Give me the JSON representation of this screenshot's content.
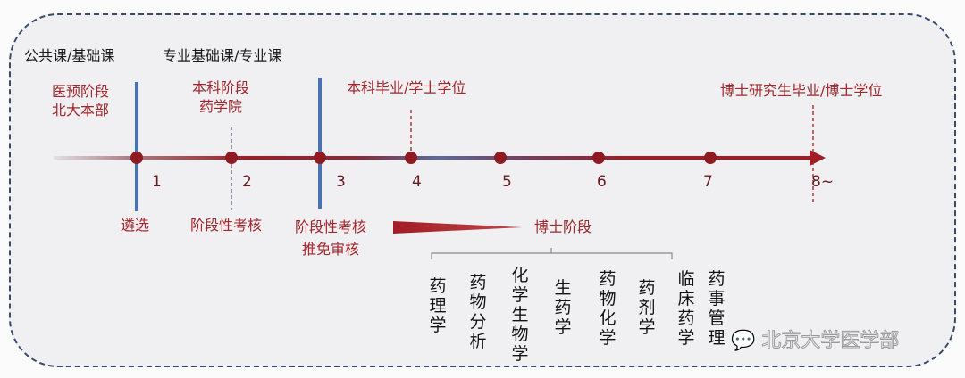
{
  "colors": {
    "timeline_red": "#9b1b22",
    "divider_blue": "#4a72b0",
    "label_red": "#a3262c",
    "frame": "#3b4a6b"
  },
  "top_labels": {
    "left": "公共课/基础课",
    "right": "专业基础课/专业课"
  },
  "stages": {
    "premed": [
      "医预阶段",
      "北大本部"
    ],
    "undergrad": [
      "本科阶段",
      "药学院"
    ],
    "bachelor": "本科毕业/学士学位",
    "phd_grad": "博士研究生毕业/博士学位"
  },
  "years": [
    "1",
    "2",
    "3",
    "4",
    "5",
    "6",
    "7",
    "8~"
  ],
  "checkpoints": {
    "selection": "遴选",
    "assessment1": "阶段性考核",
    "assessment2": [
      "阶段性考核",
      "推免审核"
    ]
  },
  "phd_stage": "博士阶段",
  "disciplines": [
    "药理学",
    "药物分析",
    "化学生物学",
    "生药学",
    "药物化学",
    "药剂学",
    "临床药学",
    "药事管理"
  ],
  "watermark": {
    "icon": "wechat-icon",
    "text": "北京大学医学部"
  }
}
